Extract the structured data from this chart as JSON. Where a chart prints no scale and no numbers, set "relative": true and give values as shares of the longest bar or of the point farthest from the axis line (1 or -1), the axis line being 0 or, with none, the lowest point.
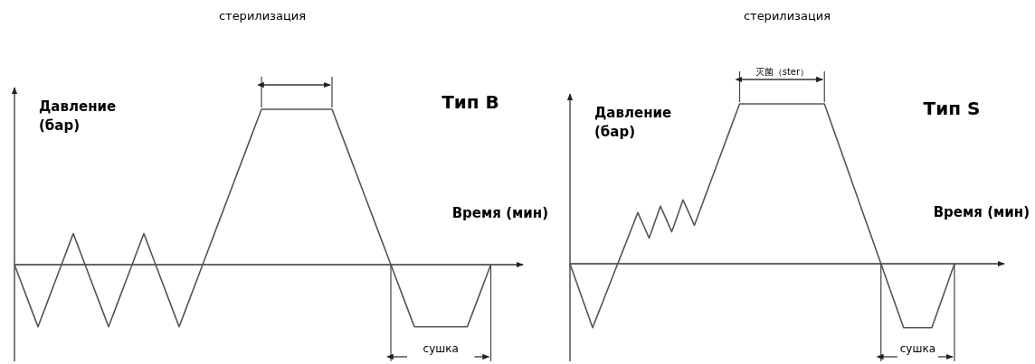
{
  "chart_data": [
    {
      "type": "line",
      "title": "стерилизация",
      "xlabel": "Время (мин)",
      "ylabel": "Давление (бар)",
      "relative": true,
      "categories": [
        null,
        null,
        null,
        null,
        null,
        null,
        null,
        null,
        null,
        null,
        null,
        null,
        null,
        null,
        null,
        null,
        null,
        null,
        null,
        null,
        null,
        null,
        null,
        null,
        null,
        null,
        null,
        null,
        null,
        null,
        null,
        null,
        null,
        null,
        null,
        null,
        null,
        null,
        null,
        null,
        null,
        null,
        null,
        null,
        null,
        null,
        null,
        null,
        null,
        null,
        null,
        null,
        null,
        null,
        null,
        null,
        null,
        null,
        null,
        null,
        null,
        null,
        null,
        null,
        null,
        null,
        null,
        null,
        null,
        null,
        null,
        null,
        null,
        null,
        null,
        null,
        null,
        null,
        null,
        null,
        null,
        null
      ],
      "series": [
        {
          "color": "#555555",
          "values": [
            0,
            -0.1,
            -0.2,
            -0.3,
            -0.4,
            -0.3,
            -0.2,
            -0.1,
            0,
            0.1,
            0.2,
            0.1,
            0,
            -0.1,
            -0.2,
            -0.3,
            -0.4,
            -0.3,
            -0.2,
            -0.1,
            0,
            0.1,
            0.2,
            0.1,
            0,
            -0.1,
            -0.2,
            -0.3,
            -0.4,
            -0.3,
            -0.2,
            -0.1,
            0,
            0.1,
            0.2,
            0.3,
            0.4,
            0.5,
            0.6,
            0.7,
            0.8,
            0.9,
            1,
            1,
            1,
            1,
            1,
            1,
            1,
            1,
            1,
            1,
            1,
            1,
            1,
            0.9,
            0.8,
            0.7,
            0.6,
            0.5,
            0.4,
            0.3,
            0.2,
            0.1,
            0,
            -0.1,
            -0.2,
            -0.3,
            -0.4,
            -0.4,
            -0.4,
            -0.4,
            -0.4,
            -0.4,
            -0.4,
            -0.4,
            -0.4,
            -0.4,
            -0.3,
            -0.2,
            -0.1,
            0
          ]
        }
      ],
      "annotations": [
        "Тип B",
        "сушка"
      ]
    },
    {
      "type": "line",
      "title": "стерилизация",
      "xlabel": "Время (мин)",
      "ylabel": "Давление (бар)",
      "relative": true,
      "categories": [
        null,
        null,
        null,
        null,
        null,
        null,
        null,
        null,
        null,
        null,
        null,
        null,
        null,
        null,
        null,
        null,
        null,
        null,
        null,
        null,
        null,
        null,
        null,
        null,
        null,
        null,
        null,
        null,
        null,
        null,
        null,
        null,
        null,
        null,
        null,
        null,
        null,
        null,
        null,
        null,
        null,
        null,
        null,
        null,
        null,
        null,
        null,
        null,
        null,
        null,
        null,
        null,
        null,
        null,
        null,
        null,
        null,
        null,
        null,
        null,
        null,
        null,
        null,
        null,
        null,
        null,
        null,
        null,
        null
      ],
      "series": [
        {
          "color": "#555555",
          "values": [
            0,
            -0.1,
            -0.2,
            -0.3,
            -0.4,
            -0.31,
            -0.22,
            -0.13,
            -0.04,
            0.05,
            0.14,
            0.23,
            0.32,
            0.24,
            0.16,
            0.26,
            0.36,
            0.28,
            0.2,
            0.3,
            0.4,
            0.32,
            0.24,
            0.335,
            0.43,
            0.525,
            0.62,
            0.715,
            0.81,
            0.905,
            1,
            1,
            1,
            1,
            1,
            1,
            1,
            1,
            1,
            1,
            1,
            1,
            1,
            1,
            1,
            1,
            0.9,
            0.8,
            0.7,
            0.6,
            0.5,
            0.4,
            0.3,
            0.2,
            0.1,
            0,
            -0.1,
            -0.2,
            -0.3,
            -0.4,
            -0.4,
            -0.4,
            -0.4,
            -0.4,
            -0.4,
            -0.3,
            -0.2,
            -0.1,
            0
          ]
        }
      ],
      "annotations": [
        "Тип S",
        "灭菌（ster）",
        "сушка"
      ]
    }
  ]
}
